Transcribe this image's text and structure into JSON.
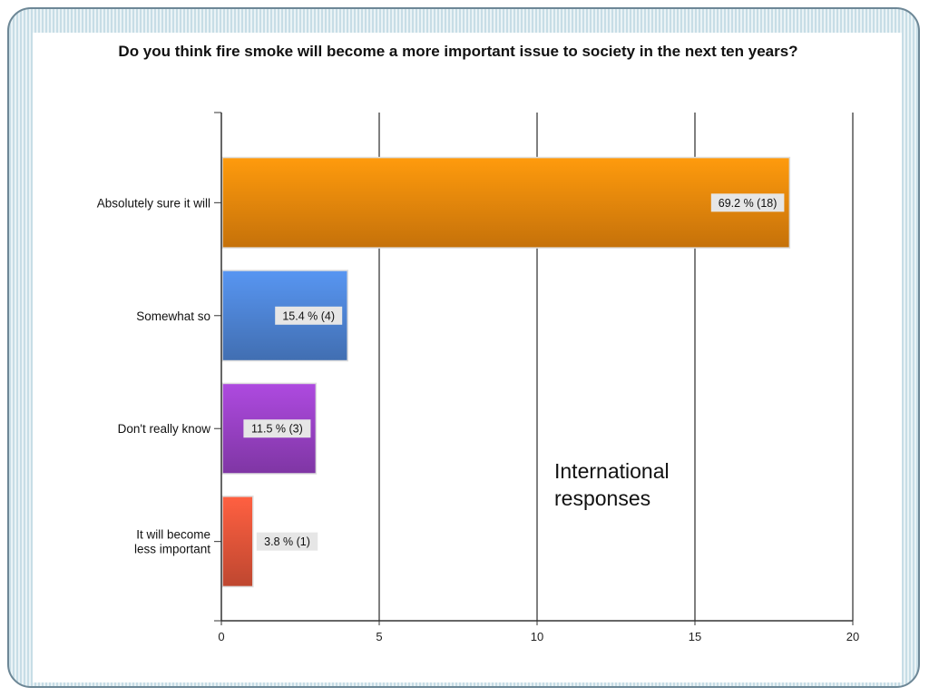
{
  "slide": {
    "overlay_text": "International\nresponses"
  },
  "chart_data": {
    "type": "bar",
    "orientation": "horizontal",
    "title": "Do you think fire smoke will become a more important issue to society in the next ten years?",
    "categories": [
      "Absolutely sure it will",
      "Somewhat so",
      "Don't really know",
      "It will become less important"
    ],
    "category_label_lines": [
      [
        "Absolutely sure it will"
      ],
      [
        "Somewhat so"
      ],
      [
        "Don't really know"
      ],
      [
        "It will become",
        "less important"
      ]
    ],
    "values": [
      18,
      4,
      3,
      1
    ],
    "data_labels": [
      "69.2 % (18)",
      "15.4 % (4)",
      "11.5 % (3)",
      "3.8 % (1)"
    ],
    "colors": [
      "#f08a0c",
      "#4f86d8",
      "#9b42c8",
      "#e8563a"
    ],
    "xlim": [
      0,
      20
    ],
    "xticks": [
      0,
      5,
      10,
      15,
      20
    ],
    "xlabel": "",
    "ylabel": "",
    "grid": true,
    "legend": "none"
  }
}
